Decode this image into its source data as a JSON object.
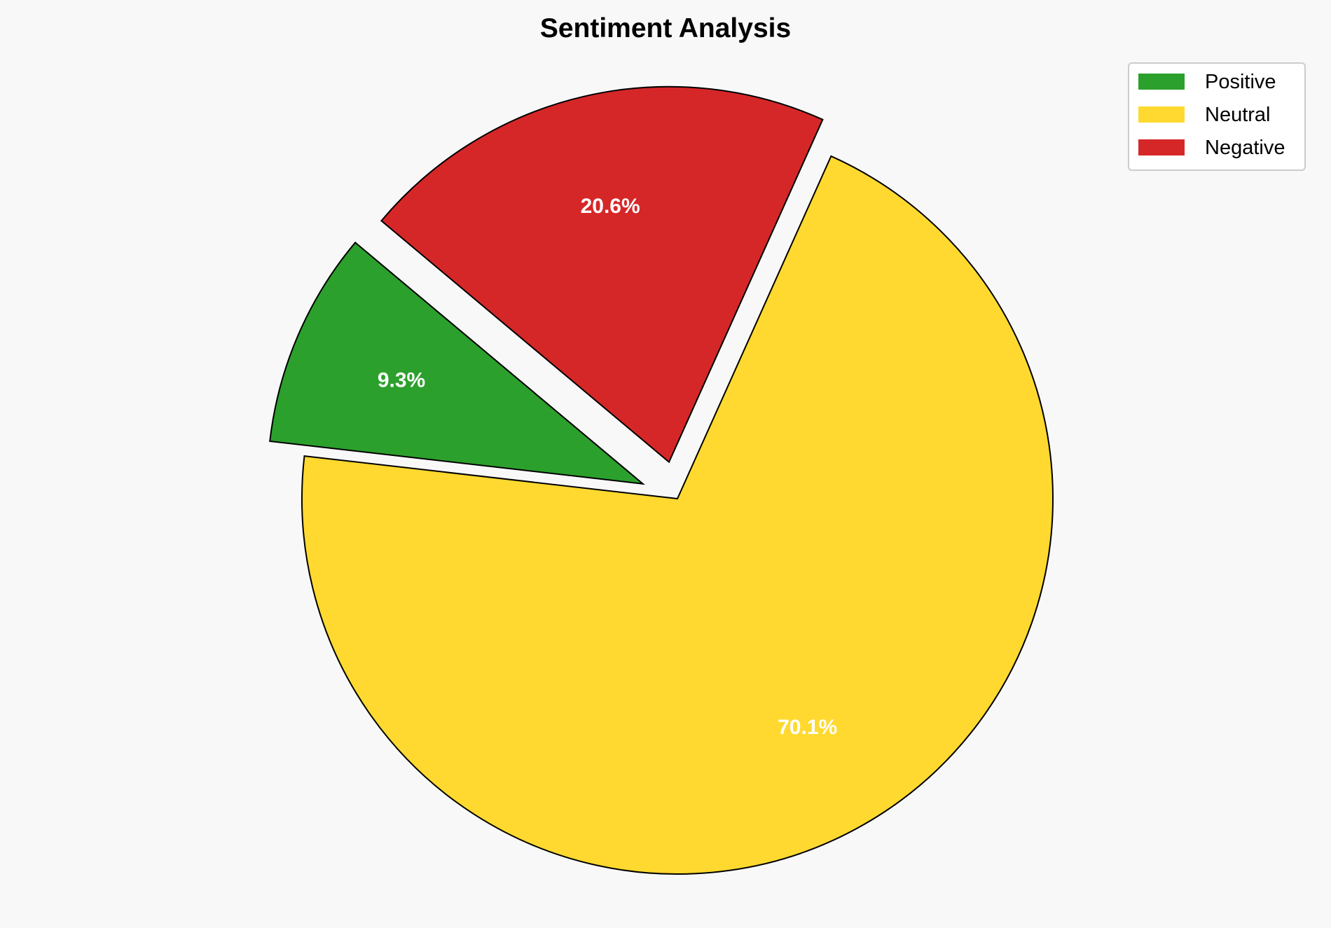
{
  "chart_data": {
    "type": "pie",
    "title": "Sentiment Analysis",
    "categories": [
      "Positive",
      "Neutral",
      "Negative"
    ],
    "values": [
      9.3,
      70.1,
      20.6
    ],
    "labels": [
      "9.3%",
      "70.1%",
      "20.6%"
    ],
    "colors": [
      "#2ca02c",
      "#ffd92f",
      "#d62728"
    ],
    "exploded": [
      true,
      false,
      true
    ],
    "start_angle_deg": 140,
    "legend": {
      "entries": [
        "Positive",
        "Neutral",
        "Negative"
      ],
      "placement": "top-right"
    }
  }
}
